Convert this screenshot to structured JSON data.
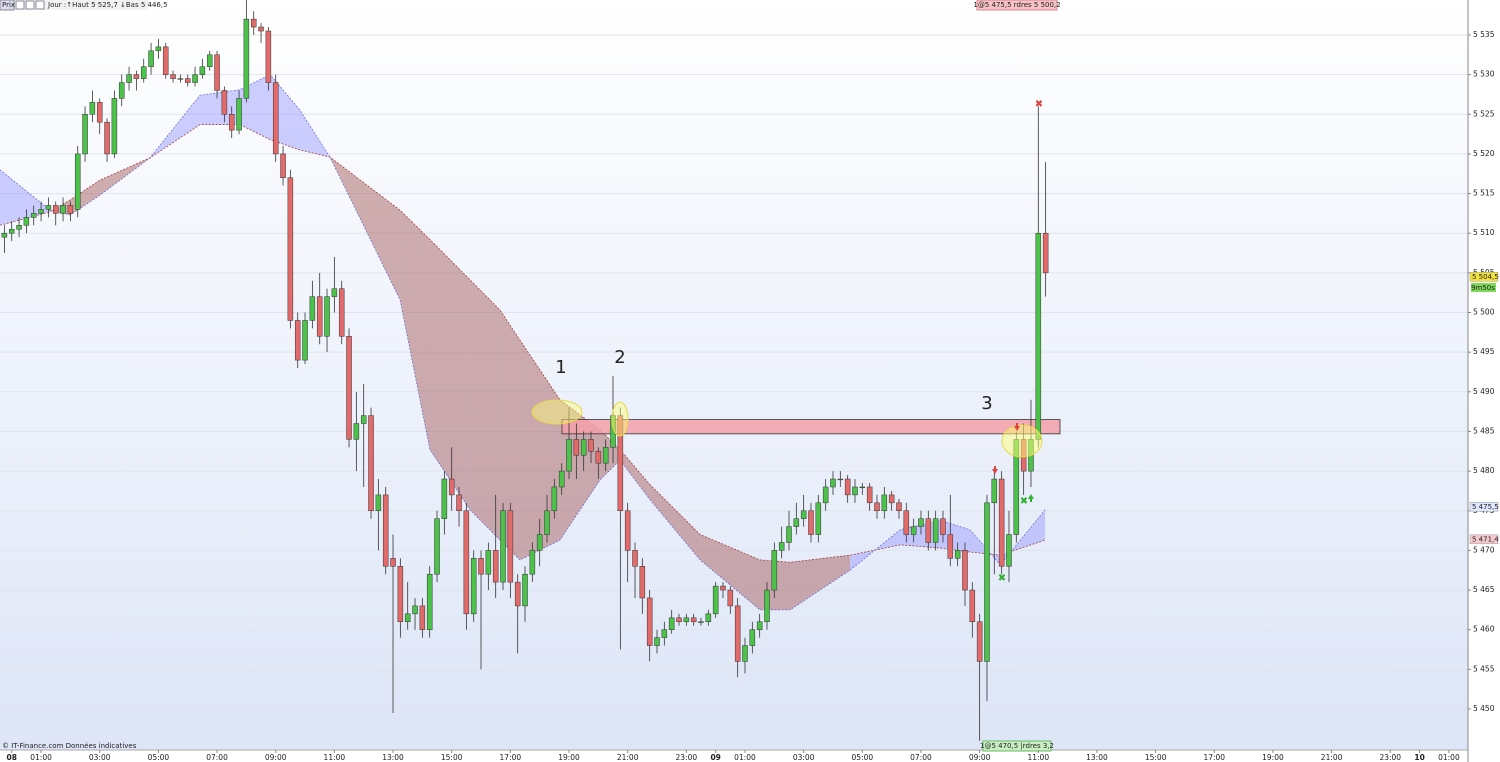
{
  "chart_data": {
    "type": "candlestick",
    "toolbar": {
      "label": "Prix",
      "info": "Jour :↑Haut 5 525,7 ↓Bas 5 446,5"
    },
    "order_top": "1@5 475,5 rdres 5 500,2",
    "order_bottom": "1@5 470,5 |rdres 3,2",
    "footer": "© IT-Finance.com Données indicatives",
    "annotations": [
      "1",
      "2",
      "3"
    ],
    "xlim": [
      -0.4,
      49.65
    ],
    "ylim": [
      5444.83,
      5539.41
    ],
    "yticks": [
      {
        "value": 5535,
        "label": "5 535"
      },
      {
        "value": 5530,
        "label": "5 530"
      },
      {
        "value": 5525,
        "label": "5 525"
      },
      {
        "value": 5520,
        "label": "5 520"
      },
      {
        "value": 5515,
        "label": "5 515"
      },
      {
        "value": 5510,
        "label": "5 510"
      },
      {
        "value": 5505,
        "label": "5 505"
      },
      {
        "value": 5500,
        "label": "5 500"
      },
      {
        "value": 5495,
        "label": "5 495"
      },
      {
        "value": 5490,
        "label": "5 490"
      },
      {
        "value": 5485,
        "label": "5 485"
      },
      {
        "value": 5480,
        "label": "5 480"
      },
      {
        "value": 5475,
        "label": "5 475"
      },
      {
        "value": 5470,
        "label": "5 470"
      },
      {
        "value": 5465,
        "label": "5 465"
      },
      {
        "value": 5460,
        "label": "5 460"
      },
      {
        "value": 5455,
        "label": "5 455"
      },
      {
        "value": 5450,
        "label": "5 450"
      }
    ],
    "xticks": [
      {
        "value": 0,
        "label": "08"
      },
      {
        "value": 1,
        "label": "01:00"
      },
      {
        "value": 3,
        "label": "03:00"
      },
      {
        "value": 5,
        "label": "05:00"
      },
      {
        "value": 7,
        "label": "07:00"
      },
      {
        "value": 9,
        "label": "09:00"
      },
      {
        "value": 11,
        "label": "11:00"
      },
      {
        "value": 13,
        "label": "13:00"
      },
      {
        "value": 15,
        "label": "15:00"
      },
      {
        "value": 17,
        "label": "17:00"
      },
      {
        "value": 19,
        "label": "19:00"
      },
      {
        "value": 21,
        "label": "21:00"
      },
      {
        "value": 23,
        "label": "23:00"
      },
      {
        "value": 24,
        "label": "09"
      },
      {
        "value": 25,
        "label": "01:00"
      },
      {
        "value": 27,
        "label": "03:00"
      },
      {
        "value": 29,
        "label": "05:00"
      },
      {
        "value": 31,
        "label": "07:00"
      },
      {
        "value": 33,
        "label": "09:00"
      },
      {
        "value": 35,
        "label": "11:00"
      },
      {
        "value": 37,
        "label": "13:00"
      },
      {
        "value": 39,
        "label": "15:00"
      },
      {
        "value": 41,
        "label": "17:00"
      },
      {
        "value": 43,
        "label": "19:00"
      },
      {
        "value": 45,
        "label": "21:00"
      },
      {
        "value": 47,
        "label": "23:00"
      },
      {
        "value": 48,
        "label": "10"
      },
      {
        "value": 49,
        "label": "01:00"
      }
    ],
    "grid": true,
    "up_color": "#4cc24a",
    "down_color": "#e26a6a",
    "candles": {
      "x": [
        -0.25,
        0,
        0.25,
        0.5,
        0.75,
        1,
        1.25,
        1.5,
        1.75,
        2,
        2.25,
        2.5,
        2.75,
        3,
        3.25,
        3.5,
        3.75,
        4,
        4.25,
        4.5,
        4.75,
        5,
        5.25,
        5.5,
        5.75,
        6,
        6.25,
        6.5,
        6.75,
        7,
        7.25,
        7.5,
        7.75,
        8,
        8.25,
        8.5,
        8.75,
        9,
        9.25,
        9.5,
        9.75,
        10,
        10.25,
        10.5,
        10.75,
        11,
        11.25,
        11.5,
        11.75,
        12,
        12.25,
        12.5,
        12.75,
        13,
        13.25,
        13.5,
        13.75,
        14,
        14.25,
        14.5,
        14.75,
        15,
        15.25,
        15.5,
        15.75,
        16,
        16.25,
        16.5,
        16.75,
        17,
        17.25,
        17.5,
        17.75,
        18,
        18.25,
        18.5,
        18.75,
        19,
        19.25,
        19.5,
        19.75,
        20,
        20.25,
        20.5,
        20.75,
        21,
        21.25,
        21.5,
        21.75,
        22,
        22.25,
        22.5,
        22.75,
        23,
        23.25,
        23.5,
        23.75,
        24,
        24.25,
        24.5,
        24.75,
        25,
        25.25,
        25.5,
        25.75,
        26,
        26.25,
        26.5,
        26.75,
        27,
        27.25,
        27.5,
        27.75,
        28,
        28.25,
        28.5,
        28.75,
        29,
        29.25,
        29.5,
        29.75,
        30,
        30.25,
        30.5,
        30.75,
        31,
        31.25,
        31.5,
        31.75,
        32,
        32.25,
        32.5,
        32.75,
        33,
        33.25,
        33.5,
        33.75,
        34,
        34.25,
        34.5,
        34.75,
        35,
        35.25
      ],
      "ohlc": [
        [
          5509.5,
          5511,
          5507.5,
          5510
        ],
        [
          5510,
          5511.5,
          5509,
          5510.5
        ],
        [
          5510.5,
          5512,
          5509.5,
          5511
        ],
        [
          5511,
          5513,
          5510,
          5512
        ],
        [
          5512,
          5513.5,
          5511,
          5512.5
        ],
        [
          5512.5,
          5514,
          5511.5,
          5513
        ],
        [
          5513,
          5514.5,
          5512,
          5513.5
        ],
        [
          5513.5,
          5514,
          5511,
          5512.5
        ],
        [
          5512.5,
          5514.5,
          5511.5,
          5513.5
        ],
        [
          5513.5,
          5514,
          5511.5,
          5512.5
        ],
        [
          5513,
          5521,
          5512,
          5520
        ],
        [
          5520,
          5526,
          5519,
          5525
        ],
        [
          5525,
          5528,
          5524,
          5526.5
        ],
        [
          5526.5,
          5527,
          5522.5,
          5524
        ],
        [
          5524,
          5524.5,
          5519,
          5520
        ],
        [
          5520,
          5528,
          5519.5,
          5527
        ],
        [
          5527,
          5530,
          5526,
          5529
        ],
        [
          5529,
          5531,
          5528,
          5530
        ],
        [
          5530,
          5530.5,
          5528,
          5529.5
        ],
        [
          5529.5,
          5532,
          5529,
          5531
        ],
        [
          5531,
          5534,
          5530,
          5533
        ],
        [
          5533,
          5534.5,
          5532,
          5533.5
        ],
        [
          5533.5,
          5534,
          5529.5,
          5530
        ],
        [
          5530,
          5530.5,
          5529,
          5529.5
        ],
        [
          5529.5,
          5530,
          5529,
          5529.5
        ],
        [
          5529.5,
          5530,
          5528.5,
          5529
        ],
        [
          5529,
          5531,
          5528.5,
          5530
        ],
        [
          5530,
          5532,
          5529.5,
          5531
        ],
        [
          5531,
          5533,
          5530.5,
          5532.5
        ],
        [
          5532.5,
          5533,
          5527,
          5528
        ],
        [
          5528,
          5528.5,
          5524,
          5525
        ],
        [
          5525,
          5526,
          5522,
          5523
        ],
        [
          5523,
          5528,
          5522.5,
          5527
        ],
        [
          5527,
          5539.5,
          5526.5,
          5537
        ],
        [
          5537,
          5538,
          5535,
          5536
        ],
        [
          5536,
          5536.5,
          5534,
          5535.5
        ],
        [
          5535.5,
          5536,
          5528,
          5529
        ],
        [
          5529,
          5530,
          5519,
          5520
        ],
        [
          5520,
          5521,
          5516,
          5517
        ],
        [
          5517,
          5518,
          5498,
          5499
        ],
        [
          5499,
          5500,
          5493,
          5494
        ],
        [
          5494,
          5500,
          5493.5,
          5499
        ],
        [
          5499,
          5504,
          5498,
          5502
        ],
        [
          5502,
          5505,
          5496,
          5497
        ],
        [
          5497,
          5503,
          5495,
          5502
        ],
        [
          5502,
          5507,
          5500,
          5503
        ],
        [
          5503,
          5504,
          5496,
          5497
        ],
        [
          5497,
          5498,
          5483,
          5484
        ],
        [
          5484,
          5490,
          5480,
          5486
        ],
        [
          5486,
          5491,
          5478,
          5487
        ],
        [
          5487,
          5488,
          5474,
          5475
        ],
        [
          5475,
          5479,
          5470,
          5477
        ],
        [
          5477,
          5478,
          5467,
          5468
        ],
        [
          5469,
          5472,
          5449.5,
          5468
        ],
        [
          5468,
          5469,
          5459,
          5461
        ],
        [
          5461,
          5466,
          5460,
          5462
        ],
        [
          5462,
          5464,
          5460,
          5463
        ],
        [
          5463,
          5464,
          5459,
          5460
        ],
        [
          5460,
          5468,
          5459,
          5467
        ],
        [
          5467,
          5475,
          5466,
          5474
        ],
        [
          5474,
          5480,
          5472,
          5479
        ],
        [
          5479,
          5483,
          5475,
          5477
        ],
        [
          5477,
          5478,
          5473,
          5475
        ],
        [
          5475,
          5476,
          5460,
          5462
        ],
        [
          5462,
          5470,
          5461,
          5469
        ],
        [
          5469,
          5470,
          5455,
          5467
        ],
        [
          5467,
          5471,
          5465,
          5470
        ],
        [
          5470,
          5477,
          5464,
          5466
        ],
        [
          5466,
          5476,
          5465,
          5475
        ],
        [
          5475,
          5476,
          5464,
          5466
        ],
        [
          5466,
          5467,
          5457,
          5463
        ],
        [
          5463,
          5468,
          5461,
          5467
        ],
        [
          5467,
          5471,
          5466,
          5470
        ],
        [
          5470,
          5474,
          5468,
          5472
        ],
        [
          5472,
          5477,
          5471,
          5475
        ],
        [
          5475,
          5479,
          5474,
          5478
        ],
        [
          5478,
          5481,
          5477,
          5480
        ],
        [
          5480,
          5488,
          5479,
          5484
        ],
        [
          5484,
          5486,
          5479,
          5482
        ],
        [
          5482,
          5485,
          5480,
          5484
        ],
        [
          5484,
          5485,
          5481,
          5482.5
        ],
        [
          5482.5,
          5483,
          5479,
          5481
        ],
        [
          5481,
          5484,
          5480,
          5483
        ],
        [
          5483,
          5492,
          5481,
          5487
        ],
        [
          5487,
          5488,
          5457.5,
          5475
        ],
        [
          5475,
          5476,
          5466,
          5470
        ],
        [
          5470,
          5471,
          5464,
          5468
        ],
        [
          5468,
          5469,
          5462,
          5464
        ],
        [
          5464,
          5465,
          5456,
          5458
        ],
        [
          5458,
          5460,
          5457,
          5459
        ],
        [
          5459,
          5461,
          5458,
          5460
        ],
        [
          5460,
          5462.5,
          5459.5,
          5461.5
        ],
        [
          5461.5,
          5462,
          5460.5,
          5461
        ],
        [
          5461,
          5462,
          5460.5,
          5461.5
        ],
        [
          5461.5,
          5462,
          5460.5,
          5461
        ],
        [
          5461,
          5461.5,
          5460.5,
          5461
        ],
        [
          5461,
          5462.5,
          5460.5,
          5462
        ],
        [
          5462,
          5466,
          5461.5,
          5465.5
        ],
        [
          5465.5,
          5466,
          5464,
          5465
        ],
        [
          5465,
          5465.5,
          5462,
          5463
        ],
        [
          5463,
          5464,
          5454,
          5456
        ],
        [
          5456,
          5459,
          5454.5,
          5458
        ],
        [
          5458,
          5461,
          5457,
          5460
        ],
        [
          5460,
          5462,
          5459,
          5461
        ],
        [
          5461,
          5466,
          5460,
          5465
        ],
        [
          5465,
          5471,
          5464,
          5470
        ],
        [
          5470,
          5473,
          5469,
          5471
        ],
        [
          5471,
          5475,
          5470,
          5473
        ],
        [
          5473,
          5476,
          5472,
          5474
        ],
        [
          5474,
          5477,
          5473,
          5475
        ],
        [
          5475,
          5476,
          5471,
          5472
        ],
        [
          5472,
          5477,
          5471,
          5476
        ],
        [
          5476,
          5479,
          5475,
          5478
        ],
        [
          5478,
          5480,
          5477,
          5479
        ],
        [
          5479,
          5480,
          5478,
          5479
        ],
        [
          5479,
          5479.5,
          5476,
          5477
        ],
        [
          5477,
          5479,
          5476,
          5478
        ],
        [
          5478,
          5478.5,
          5477,
          5478
        ],
        [
          5478,
          5478.5,
          5475,
          5476
        ],
        [
          5476,
          5477,
          5474,
          5475
        ],
        [
          5475,
          5478,
          5474,
          5477
        ],
        [
          5477,
          5477.5,
          5475,
          5476
        ],
        [
          5476,
          5476.5,
          5474,
          5475
        ],
        [
          5475,
          5476,
          5471,
          5472
        ],
        [
          5472,
          5474,
          5471,
          5473
        ],
        [
          5473,
          5475,
          5472,
          5474
        ],
        [
          5474,
          5475,
          5470,
          5471
        ],
        [
          5471,
          5475,
          5470,
          5474
        ],
        [
          5474,
          5475,
          5471,
          5472
        ],
        [
          5472,
          5477,
          5468,
          5469
        ],
        [
          5469,
          5471,
          5468,
          5470
        ],
        [
          5470,
          5471,
          5463,
          5465
        ],
        [
          5465,
          5466,
          5459,
          5461
        ],
        [
          5461,
          5462,
          5446,
          5456
        ],
        [
          5456,
          5477,
          5451,
          5476
        ],
        [
          5476,
          5480,
          5467,
          5479
        ],
        [
          5479,
          5480,
          5467,
          5468
        ],
        [
          5468,
          5475,
          5466,
          5472
        ],
        [
          5472,
          5485,
          5471,
          5484
        ],
        [
          5484,
          5486,
          5477,
          5480
        ],
        [
          5480,
          5489,
          5478,
          5484
        ],
        [
          5484,
          5526,
          5483,
          5510
        ],
        [
          5510,
          5519,
          5502,
          5505
        ]
      ]
    },
    "bands": {
      "x": [
        -0.4,
        1.31,
        1.99,
        3.01,
        4.71,
        6.42,
        7.78,
        8.81,
        9.83,
        10.85,
        13.24,
        14.26,
        15.63,
        16.65,
        17.33,
        18.69,
        20.06,
        20.74,
        21.76,
        23.47,
        25.51,
        26.54,
        28.58,
        30.29,
        31.65,
        32.67,
        33.7,
        35.23
      ],
      "fast": [
        5518.0,
        5512.9,
        5512.3,
        5514.8,
        5519.5,
        5527.4,
        5528.1,
        5530.0,
        5525.5,
        5519.6,
        5501.6,
        5482.7,
        5475.1,
        5471.3,
        5468.8,
        5471.3,
        5478.9,
        5481.4,
        5476.4,
        5468.8,
        5462.5,
        5462.5,
        5467.5,
        5472.6,
        5473.8,
        5472.6,
        5468.2,
        5475.1
      ],
      "slow": [
        5511.0,
        5512.7,
        5514.2,
        5516.7,
        5519.5,
        5523.7,
        5523.7,
        5521.8,
        5520.5,
        5519.6,
        5512.9,
        5509.2,
        5504.1,
        5500.3,
        5496.5,
        5489.0,
        5485.2,
        5482.7,
        5478.3,
        5472.0,
        5468.8,
        5468.5,
        5469.4,
        5470.7,
        5470.3,
        5469.8,
        5469.4,
        5471.3
      ],
      "up_color": "#9d9dff",
      "down_color": "#a86060"
    },
    "zone": {
      "x": [
        18.76,
        35.74
      ],
      "top": 5486.5,
      "bottom": 5484.7,
      "color": "#f4a0a8"
    },
    "price_tags": [
      {
        "value": 5504.5,
        "label": "5 504,5",
        "color": "#f2e33a"
      },
      {
        "value": 5475.5,
        "label": "5 475,5",
        "color": "#dfe6ff"
      },
      {
        "value": 5471.4,
        "label": "5 471,4",
        "color": "#f6c9cf"
      }
    ],
    "timer": "9m50s"
  }
}
